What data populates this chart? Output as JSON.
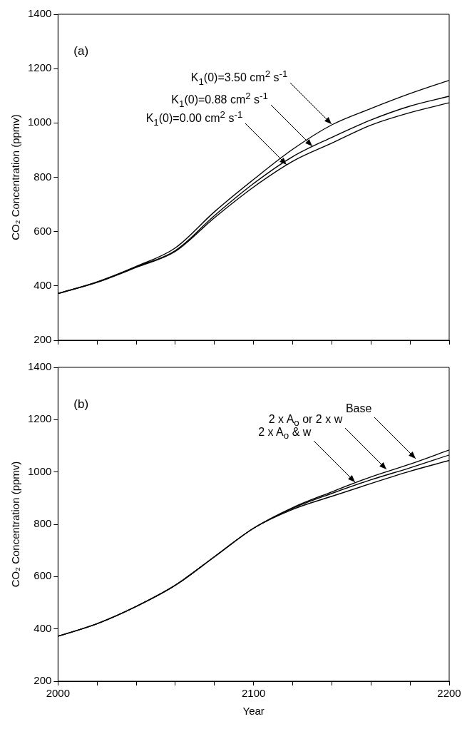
{
  "chart_data": [
    {
      "type": "line",
      "ylabel": "CO₂ Concentration (ppmv)",
      "x": [
        2000,
        2020,
        2040,
        2060,
        2080,
        2100,
        2120,
        2140,
        2160,
        2180,
        2200
      ],
      "xlim": [
        2000,
        2200
      ],
      "xticks": [
        2000,
        {
          "value": 2020,
          "label": null
        },
        {
          "value": 2040,
          "label": null
        },
        {
          "value": 2060,
          "label": null
        },
        {
          "value": 2080,
          "label": null
        },
        2100,
        {
          "value": 2120,
          "label": null
        },
        {
          "value": 2140,
          "label": null
        },
        {
          "value": 2160,
          "label": null
        },
        {
          "value": 2180,
          "label": null
        },
        2200
      ],
      "ylim": [
        200,
        1400
      ],
      "yticks": [
        200,
        400,
        600,
        800,
        1000,
        1200,
        1400
      ],
      "tick_labels": "y",
      "grid": false,
      "marker": "none",
      "line_style": "solid",
      "series": [
        {
          "color": "#000000",
          "values": [
            372,
            415,
            472,
            540,
            673,
            792,
            903,
            993,
            1053,
            1108,
            1157
          ]
        },
        {
          "color": "#000000",
          "values": [
            372,
            414,
            470,
            530,
            659,
            777,
            876,
            947,
            1011,
            1062,
            1098
          ]
        },
        {
          "color": "#000000",
          "values": [
            372,
            413,
            468,
            527,
            651,
            764,
            859,
            926,
            992,
            1038,
            1074
          ]
        }
      ],
      "annotations": [
        "(a)",
        {
          "text": "K$_{1}$(0)=3.50 cm$^{2}$ s$^{-1}$",
          "x": 2140,
          "y": 995
        },
        {
          "text": "K$_{1}$(0)=0.88 cm$^{2}$ s$^{-1}$",
          "x": 2130,
          "y": 913
        },
        {
          "text": "K$_{1}$(0)=0.00 cm$^{2}$ s$^{-1}$",
          "x": 2117,
          "y": 846
        }
      ]
    },
    {
      "type": "line",
      "ylabel": "CO₂ Concentration (ppmv)",
      "xlabel": "Year",
      "x": [
        2000,
        2020,
        2040,
        2060,
        2080,
        2100,
        2120,
        2140,
        2160,
        2180,
        2200
      ],
      "xlim": [
        2000,
        2200
      ],
      "xticks": [
        2000,
        {
          "value": 2020,
          "label": null
        },
        {
          "value": 2040,
          "label": null
        },
        {
          "value": 2060,
          "label": null
        },
        {
          "value": 2080,
          "label": null
        },
        2100,
        {
          "value": 2120,
          "label": null
        },
        {
          "value": 2140,
          "label": null
        },
        {
          "value": 2160,
          "label": null
        },
        {
          "value": 2180,
          "label": null
        },
        2200
      ],
      "ylim": [
        200,
        1400
      ],
      "yticks": [
        200,
        400,
        600,
        800,
        1000,
        1200,
        1400
      ],
      "grid": false,
      "marker": "none",
      "line_style": "solid",
      "series": [
        {
          "color": "#000000",
          "values": [
            372,
            420,
            486,
            567,
            676,
            785,
            864,
            924,
            981,
            1030,
            1084
          ]
        },
        {
          "color": "#000000",
          "values": [
            372,
            420,
            486,
            567,
            676,
            785,
            861,
            918,
            970,
            1016,
            1065
          ]
        },
        {
          "color": "#000000",
          "values": [
            372,
            420,
            486,
            567,
            676,
            785,
            857,
            907,
            956,
            1003,
            1044
          ]
        }
      ],
      "annotations": [
        "(b)",
        {
          "text": "Base",
          "x": 2183,
          "y": 1052
        },
        {
          "text": "2 x A$_{o}$ or 2 x w",
          "x": 2168,
          "y": 1011
        },
        {
          "text": "2 x A$_{o}$ & w",
          "x": 2152,
          "y": 962
        }
      ]
    }
  ]
}
